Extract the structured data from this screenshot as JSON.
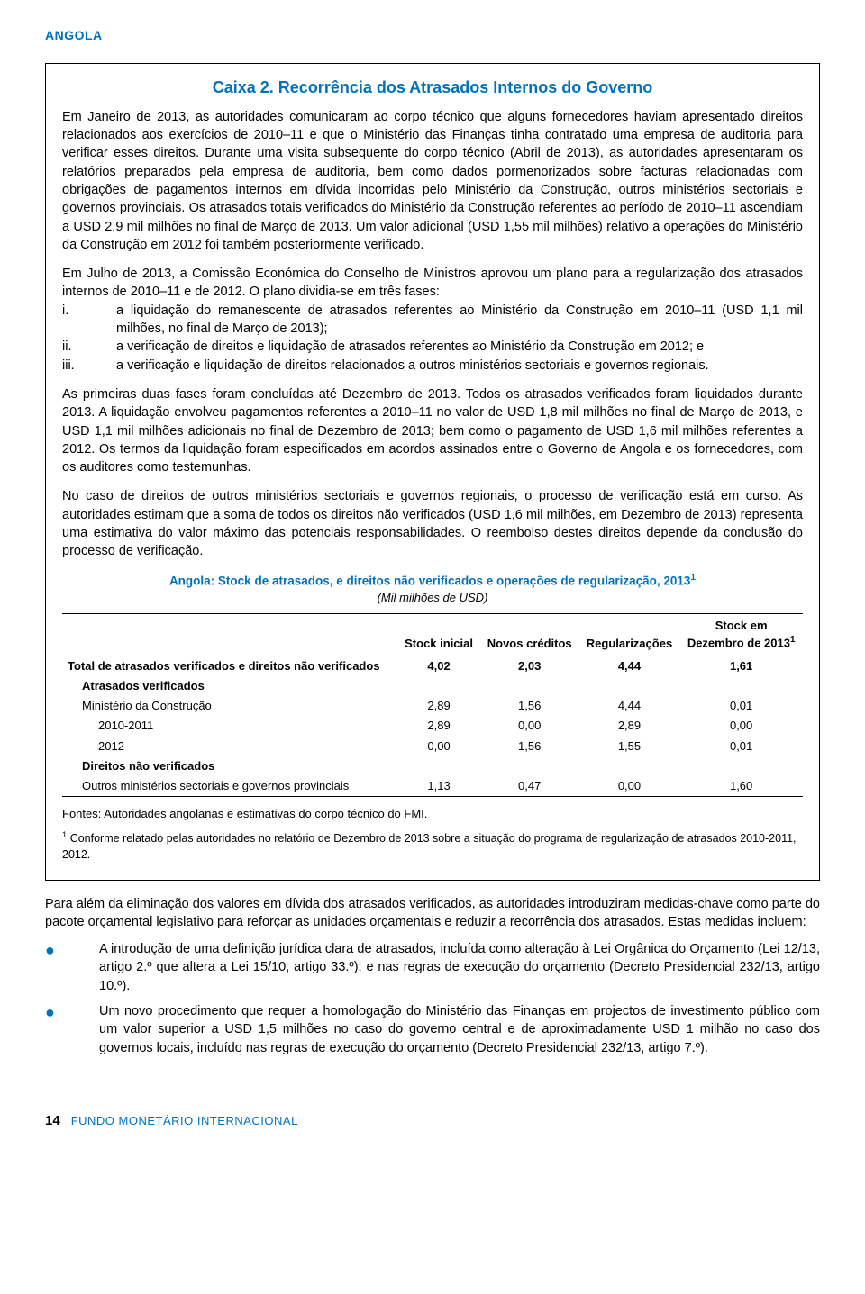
{
  "header": {
    "country": "ANGOLA"
  },
  "box": {
    "title": "Caixa 2. Recorrência dos Atrasados Internos do Governo",
    "para1": "Em Janeiro de 2013, as autoridades comunicaram ao corpo técnico que alguns fornecedores haviam apresentado direitos relacionados aos exercícios de 2010–11 e que o Ministério das Finanças tinha contratado uma empresa de auditoria para verificar esses direitos. Durante uma visita subsequente do corpo técnico (Abril de 2013), as autoridades apresentaram os relatórios preparados pela empresa de auditoria, bem como dados pormenorizados sobre facturas relacionadas com obrigações de pagamentos internos em dívida incorridas pelo Ministério da Construção, outros ministérios sectoriais e governos provinciais. Os atrasados totais verificados do Ministério da Construção referentes ao período de 2010–11 ascendiam a USD 2,9 mil milhões no final de Março de 2013. Um valor adicional (USD 1,55 mil milhões) relativo a operações do Ministério da Construção em 2012 foi também posteriormente verificado.",
    "phases_intro": "Em Julho de 2013, a Comissão Económica do Conselho de Ministros aprovou um plano para a regularização dos atrasados internos de 2010–11 e de 2012. O plano dividia-se em três fases:",
    "phases": [
      {
        "num": "i.",
        "text": "a liquidação do remanescente de atrasados referentes ao Ministério da Construção em 2010–11 (USD 1,1 mil milhões, no final de Março de 2013);"
      },
      {
        "num": "ii.",
        "text": "a verificação de direitos e liquidação de atrasados referentes ao Ministério da Construção em 2012; e"
      },
      {
        "num": "iii.",
        "text": "a verificação e liquidação de direitos relacionados a outros ministérios sectoriais e governos regionais."
      }
    ],
    "para2": "As primeiras duas fases foram concluídas até Dezembro de 2013. Todos os atrasados verificados foram liquidados durante 2013. A liquidação envolveu pagamentos referentes a 2010–11 no valor de USD 1,8 mil milhões no final de Março de 2013, e USD 1,1 mil milhões adicionais no final de Dezembro de 2013; bem como o pagamento de USD 1,6 mil milhões referentes a 2012. Os termos da liquidação foram especificados em acordos assinados entre o Governo de Angola e os fornecedores, com os auditores como testemunhas.",
    "para3": "No caso de direitos de outros ministérios sectoriais e governos regionais, o processo de verificação está em curso. As autoridades estimam que a soma de todos os direitos não verificados (USD 1,6 mil milhões, em Dezembro de 2013) representa uma estimativa do valor máximo das potenciais responsabilidades. O reembolso destes direitos depende da conclusão do processo de verificação.",
    "table": {
      "title": "Angola: Stock de atrasados, e direitos não verificados e operações de regularização, 2013",
      "title_sup": "1",
      "subtitle": "(Mil milhões de USD)",
      "headers": {
        "c1": "",
        "c2": "Stock inicial",
        "c3": "Novos créditos",
        "c4": "Regularizações",
        "c5a": "Stock em",
        "c5b": "Dezembro de 2013",
        "c5_sup": "1"
      },
      "rows": [
        {
          "cls": "total",
          "c1": "Total de atrasados verificados e direitos não verificados",
          "c2": "4,02",
          "c3": "2,03",
          "c4": "4,44",
          "c5": "1,61"
        },
        {
          "cls": "section indent1",
          "c1": "Atrasados verificados",
          "c2": "",
          "c3": "",
          "c4": "",
          "c5": ""
        },
        {
          "cls": "indent1",
          "c1": "Ministério da Construção",
          "c2": "2,89",
          "c3": "1,56",
          "c4": "4,44",
          "c5": "0,01"
        },
        {
          "cls": "indent2",
          "c1": "2010-2011",
          "c2": "2,89",
          "c3": "0,00",
          "c4": "2,89",
          "c5": "0,00"
        },
        {
          "cls": "indent2",
          "c1": "2012",
          "c2": "0,00",
          "c3": "1,56",
          "c4": "1,55",
          "c5": "0,01"
        },
        {
          "cls": "section indent1",
          "c1": "Direitos não verificados",
          "c2": "",
          "c3": "",
          "c4": "",
          "c5": ""
        },
        {
          "cls": "indent1 last",
          "c1": "Outros ministérios sectoriais e governos provinciais",
          "c2": "1,13",
          "c3": "0,47",
          "c4": "0,00",
          "c5": "1,60"
        }
      ],
      "sources": "Fontes: Autoridades angolanas e estimativas do corpo técnico do FMI.",
      "footnote_sup": "1",
      "footnote": " Conforme relatado pelas autoridades no relatório de Dezembro de 2013 sobre a situação do programa de regularização de atrasados 2010-2011, 2012."
    }
  },
  "after_box": {
    "para": "Para além da eliminação dos valores em dívida dos atrasados verificados, as autoridades introduziram medidas-chave como parte do pacote orçamental legislativo para reforçar as unidades orçamentais e reduzir a recorrência dos atrasados. Estas medidas incluem:",
    "bullets": [
      "A introdução de uma definição jurídica clara de atrasados, incluída como alteração à Lei Orgânica do Orçamento (Lei 12/13, artigo 2.º que altera a Lei 15/10, artigo 33.º); e nas regras de execução do orçamento (Decreto Presidencial 232/13, artigo 10.º).",
      "Um novo procedimento que requer a homologação do Ministério das Finanças em projectos de investimento público com um valor superior a USD 1,5 milhões no caso do governo central e de aproximadamente USD 1 milhão no caso dos governos locais, incluído nas regras de execução do orçamento (Decreto Presidencial 232/13, artigo 7.º)."
    ]
  },
  "footer": {
    "page_num": "14",
    "org": "FUNDO MONETÁRIO INTERNACIONAL"
  },
  "colors": {
    "accent": "#0071bc",
    "text": "#000000",
    "border": "#000000"
  }
}
